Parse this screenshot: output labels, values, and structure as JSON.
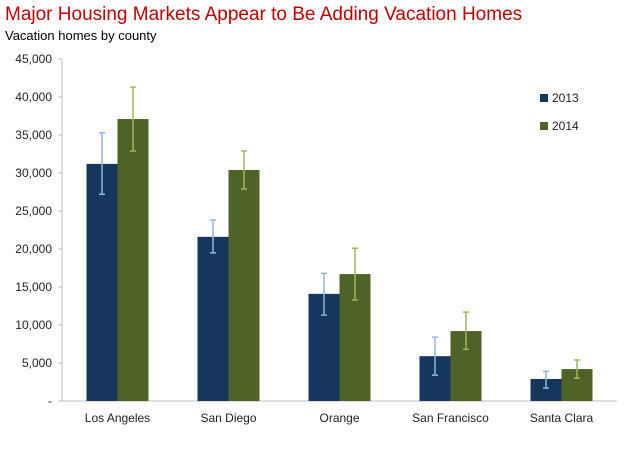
{
  "chart_data": {
    "type": "bar",
    "title": "Major Housing Markets Appear to Be Adding Vacation Homes",
    "subtitle": "Vacation homes by county",
    "xlabel": "",
    "ylabel": "",
    "ylim": [
      0,
      45000
    ],
    "yticks": [
      0,
      5000,
      10000,
      15000,
      20000,
      25000,
      30000,
      35000,
      40000,
      45000
    ],
    "ytick_labels": [
      "-",
      "5,000",
      "10,000",
      "15,000",
      "20,000",
      "25,000",
      "30,000",
      "35,000",
      "40,000",
      "45,000"
    ],
    "categories": [
      "Los Angeles",
      "San Diego",
      "Orange",
      "San Francisco",
      "Santa Clara"
    ],
    "legend_position": "right",
    "grid": false,
    "series": [
      {
        "name": "2013",
        "color": "#17365d",
        "error_color": "#8db3e2",
        "values": [
          31200,
          21600,
          14100,
          5900,
          2900
        ],
        "error_low": [
          27200,
          19500,
          11300,
          3400,
          1700
        ],
        "error_high": [
          35300,
          23800,
          16800,
          8400,
          3900
        ]
      },
      {
        "name": "2014",
        "color": "#4f6228",
        "error_color": "#9bbb59",
        "values": [
          37100,
          30400,
          16700,
          9200,
          4200
        ],
        "error_low": [
          32900,
          27900,
          13300,
          6800,
          3000
        ],
        "error_high": [
          41300,
          32900,
          20100,
          11700,
          5400
        ]
      }
    ]
  }
}
